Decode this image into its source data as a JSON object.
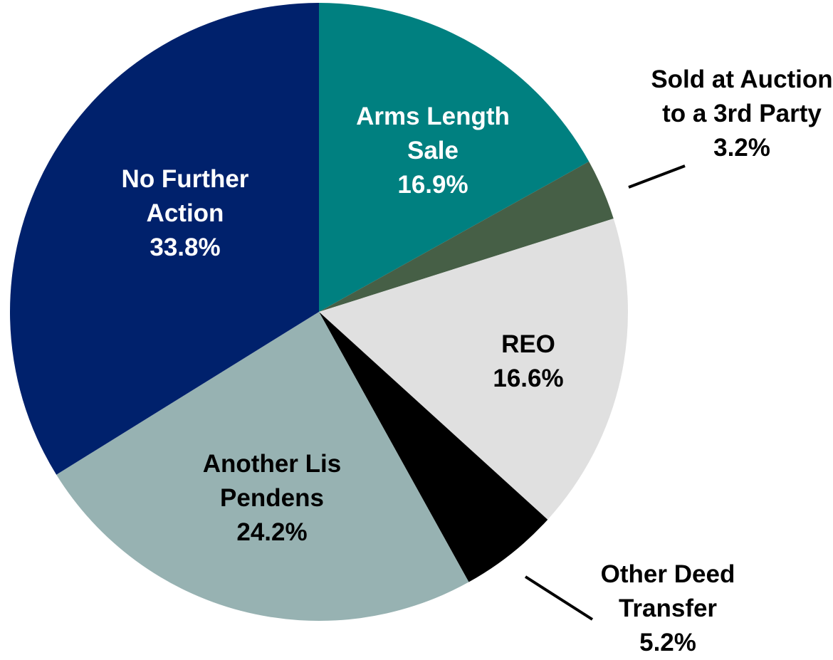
{
  "chart_data": {
    "type": "pie",
    "categories": [
      "Arms Length Sale",
      "Sold at Auction to a 3rd Party",
      "REO",
      "Other Deed Transfer",
      "Another Lis Pendens",
      "No Further Action"
    ],
    "values": [
      16.9,
      3.2,
      16.6,
      5.2,
      24.2,
      33.8
    ],
    "value_labels": [
      "16.9%",
      "3.2%",
      "16.6%",
      "5.2%",
      "24.2%",
      "33.8%"
    ],
    "colors": [
      "#008080",
      "#465f46",
      "#e0e0e0",
      "#000000",
      "#97b2b2",
      "#00216c"
    ]
  }
}
